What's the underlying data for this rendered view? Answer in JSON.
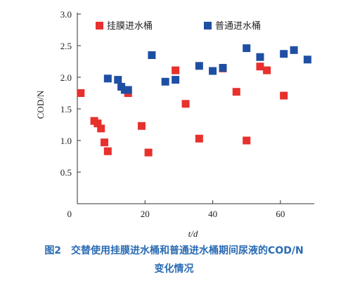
{
  "chart_data": {
    "type": "scatter",
    "xlabel": "t/d",
    "ylabel": "COD/N",
    "xlim": [
      0,
      70
    ],
    "ylim": [
      0,
      3.0
    ],
    "x_ticks": [
      0,
      20,
      40,
      60
    ],
    "x_tick_labels": [
      "0",
      "20",
      "40",
      "60"
    ],
    "y_ticks": [
      0.5,
      1.0,
      1.5,
      2.0,
      2.5,
      3.0
    ],
    "y_tick_labels": [
      "0.5",
      "1.0",
      "1.5",
      "2.0",
      "2.5",
      "3.0"
    ],
    "grid": false,
    "legend_position": "top",
    "series": [
      {
        "name": "挂膜进水桶",
        "color": "#e8302d",
        "marker": "square",
        "points": [
          {
            "x": 1,
            "y": 1.75
          },
          {
            "x": 5,
            "y": 1.31
          },
          {
            "x": 6,
            "y": 1.27
          },
          {
            "x": 7,
            "y": 1.19
          },
          {
            "x": 8,
            "y": 0.97
          },
          {
            "x": 9,
            "y": 0.83
          },
          {
            "x": 15,
            "y": 1.75
          },
          {
            "x": 19,
            "y": 1.23
          },
          {
            "x": 21,
            "y": 0.81
          },
          {
            "x": 29,
            "y": 2.11
          },
          {
            "x": 32,
            "y": 1.58
          },
          {
            "x": 36,
            "y": 1.03
          },
          {
            "x": 43,
            "y": 2.14
          },
          {
            "x": 47,
            "y": 1.77
          },
          {
            "x": 50,
            "y": 1.0
          },
          {
            "x": 54,
            "y": 2.17
          },
          {
            "x": 56,
            "y": 2.11
          },
          {
            "x": 61,
            "y": 1.71
          }
        ]
      },
      {
        "name": "普通进水桶",
        "color": "#1f4fa3",
        "marker": "square",
        "points": [
          {
            "x": 9,
            "y": 1.98
          },
          {
            "x": 12,
            "y": 1.96
          },
          {
            "x": 13,
            "y": 1.85
          },
          {
            "x": 14,
            "y": 1.8
          },
          {
            "x": 15,
            "y": 1.8
          },
          {
            "x": 22,
            "y": 2.35
          },
          {
            "x": 26,
            "y": 1.93
          },
          {
            "x": 29,
            "y": 1.96
          },
          {
            "x": 36,
            "y": 2.18
          },
          {
            "x": 40,
            "y": 2.1
          },
          {
            "x": 43,
            "y": 2.15
          },
          {
            "x": 50,
            "y": 2.46
          },
          {
            "x": 54,
            "y": 2.32
          },
          {
            "x": 61,
            "y": 2.37
          },
          {
            "x": 64,
            "y": 2.43
          },
          {
            "x": 68,
            "y": 2.28
          }
        ]
      }
    ]
  },
  "caption": {
    "line1": "图2　交替使用挂膜进水桶和普通进水桶期间尿液的COD/N",
    "line2": "变化情况"
  }
}
